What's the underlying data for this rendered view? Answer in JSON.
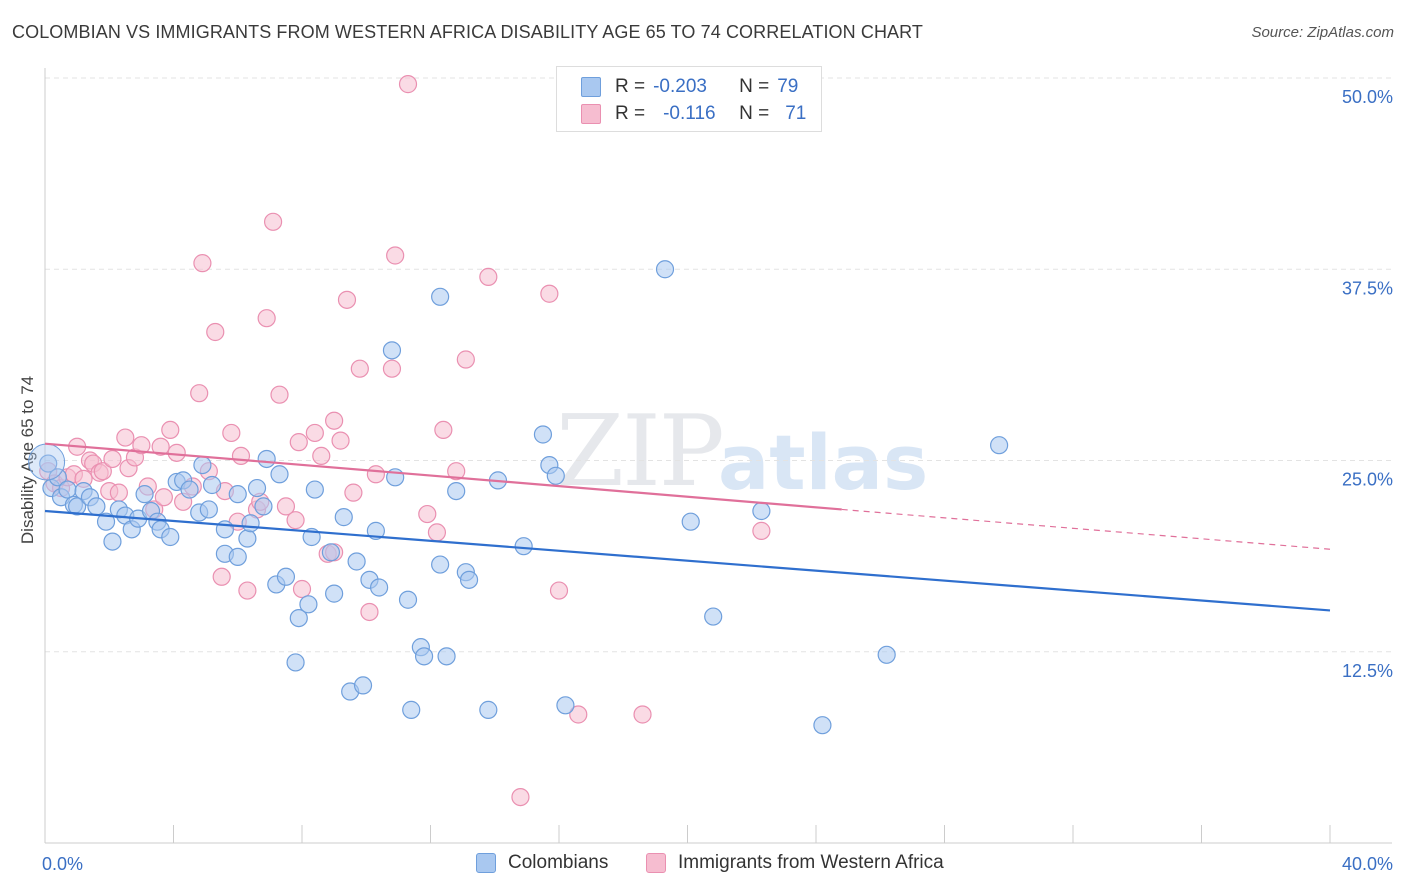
{
  "title": "COLOMBIAN VS IMMIGRANTS FROM WESTERN AFRICA DISABILITY AGE 65 TO 74 CORRELATION CHART",
  "source": "Source: ZipAtlas.com",
  "watermark": {
    "zip": "ZIP",
    "atlas": "atlas"
  },
  "legend_top": {
    "series1": {
      "r_label": "R =",
      "r_value": "-0.203",
      "n_label": "N =",
      "n_value": "79"
    },
    "series2": {
      "r_label": "R =",
      "r_value": "-0.116",
      "n_label": "N =",
      "n_value": "71"
    }
  },
  "legend_bottom": {
    "series1": "Colombians",
    "series2": "Immigrants from Western Africa"
  },
  "colors": {
    "blue_fill": "#a9c8f0",
    "blue_stroke": "#6f9fdc",
    "blue_line": "#2f6fce",
    "pink_fill": "#f6bdd0",
    "pink_stroke": "#ea90b1",
    "pink_line": "#e0709a",
    "tick_text": "#3a6fc4",
    "grid": "#e3e3e3"
  },
  "chart_data": {
    "type": "scatter",
    "title": "COLOMBIAN VS IMMIGRANTS FROM WESTERN AFRICA DISABILITY AGE 65 TO 74 CORRELATION CHART",
    "xlabel": "",
    "ylabel": "Disability Age 65 to 74",
    "xlim": [
      0,
      40
    ],
    "ylim": [
      0,
      50
    ],
    "x_tick_labels": [
      "0.0%",
      "40.0%"
    ],
    "y_ticks": [
      12.5,
      25.0,
      37.5,
      50.0
    ],
    "y_tick_labels": [
      "12.5%",
      "25.0%",
      "37.5%",
      "50.0%"
    ],
    "series": [
      {
        "name": "Colombians",
        "r": -0.203,
        "n": 79,
        "trend": {
          "x": [
            0,
            40
          ],
          "y": [
            21.7,
            15.2
          ]
        },
        "points": [
          [
            0.1,
            24.8
          ],
          [
            0.2,
            23.2
          ],
          [
            0.4,
            23.9
          ],
          [
            0.5,
            22.6
          ],
          [
            0.7,
            23.1
          ],
          [
            0.9,
            22.1
          ],
          [
            1.0,
            22.0
          ],
          [
            1.2,
            23.0
          ],
          [
            1.4,
            22.6
          ],
          [
            1.6,
            22.0
          ],
          [
            1.9,
            21.0
          ],
          [
            2.1,
            19.7
          ],
          [
            2.3,
            21.8
          ],
          [
            2.5,
            21.4
          ],
          [
            2.7,
            20.5
          ],
          [
            2.9,
            21.2
          ],
          [
            3.1,
            22.8
          ],
          [
            3.3,
            21.7
          ],
          [
            3.5,
            21.0
          ],
          [
            3.6,
            20.5
          ],
          [
            3.9,
            20.0
          ],
          [
            4.1,
            23.6
          ],
          [
            4.3,
            23.7
          ],
          [
            4.5,
            23.1
          ],
          [
            4.8,
            21.6
          ],
          [
            4.9,
            24.7
          ],
          [
            5.1,
            21.8
          ],
          [
            5.2,
            23.4
          ],
          [
            5.6,
            18.9
          ],
          [
            5.6,
            20.5
          ],
          [
            6.0,
            18.7
          ],
          [
            6.0,
            22.8
          ],
          [
            6.3,
            19.9
          ],
          [
            6.4,
            20.9
          ],
          [
            6.6,
            23.2
          ],
          [
            6.8,
            22.0
          ],
          [
            6.9,
            25.1
          ],
          [
            7.2,
            16.9
          ],
          [
            7.3,
            24.1
          ],
          [
            7.5,
            17.4
          ],
          [
            7.8,
            11.8
          ],
          [
            7.9,
            14.7
          ],
          [
            8.2,
            15.6
          ],
          [
            8.3,
            20.0
          ],
          [
            8.4,
            23.1
          ],
          [
            8.9,
            19.0
          ],
          [
            9.0,
            16.3
          ],
          [
            9.3,
            21.3
          ],
          [
            9.5,
            9.9
          ],
          [
            9.7,
            18.4
          ],
          [
            9.9,
            10.3
          ],
          [
            10.1,
            17.2
          ],
          [
            10.3,
            20.4
          ],
          [
            10.4,
            16.7
          ],
          [
            10.8,
            32.2
          ],
          [
            10.9,
            23.9
          ],
          [
            11.3,
            15.9
          ],
          [
            11.4,
            8.7
          ],
          [
            11.7,
            12.8
          ],
          [
            11.8,
            12.2
          ],
          [
            12.3,
            18.2
          ],
          [
            12.5,
            12.2
          ],
          [
            12.8,
            23.0
          ],
          [
            13.1,
            17.7
          ],
          [
            13.2,
            17.2
          ],
          [
            13.8,
            8.7
          ],
          [
            14.1,
            23.7
          ],
          [
            14.9,
            19.4
          ],
          [
            15.5,
            26.7
          ],
          [
            15.7,
            24.7
          ],
          [
            15.9,
            24.0
          ],
          [
            16.2,
            9.0
          ],
          [
            12.3,
            35.7
          ],
          [
            19.3,
            37.5
          ],
          [
            20.1,
            21.0
          ],
          [
            20.8,
            14.8
          ],
          [
            24.2,
            7.7
          ],
          [
            26.2,
            12.3
          ],
          [
            29.7,
            26.0
          ],
          [
            22.3,
            21.7
          ]
        ]
      },
      {
        "name": "Immigrants from Western Africa",
        "r": -0.116,
        "n": 71,
        "trend": {
          "x": [
            0,
            24.8
          ],
          "y": [
            26.1,
            21.8
          ]
        },
        "trend_dashed": {
          "x": [
            24.8,
            40
          ],
          "y": [
            21.8,
            19.2
          ]
        },
        "points": [
          [
            0.1,
            24.3
          ],
          [
            0.3,
            23.5
          ],
          [
            0.5,
            23.2
          ],
          [
            0.7,
            23.9
          ],
          [
            0.9,
            24.1
          ],
          [
            1.0,
            25.9
          ],
          [
            1.2,
            23.8
          ],
          [
            1.4,
            25.0
          ],
          [
            1.5,
            24.8
          ],
          [
            1.7,
            24.2
          ],
          [
            1.8,
            24.3
          ],
          [
            2.0,
            23.0
          ],
          [
            2.1,
            25.1
          ],
          [
            2.3,
            22.9
          ],
          [
            2.5,
            26.5
          ],
          [
            2.6,
            24.5
          ],
          [
            2.8,
            25.2
          ],
          [
            3.0,
            26.0
          ],
          [
            3.2,
            23.3
          ],
          [
            3.4,
            21.8
          ],
          [
            3.6,
            25.9
          ],
          [
            3.7,
            22.6
          ],
          [
            3.9,
            27.0
          ],
          [
            4.1,
            25.5
          ],
          [
            4.3,
            22.3
          ],
          [
            4.6,
            23.3
          ],
          [
            4.8,
            29.4
          ],
          [
            4.9,
            37.9
          ],
          [
            5.1,
            24.3
          ],
          [
            5.3,
            33.4
          ],
          [
            5.5,
            17.4
          ],
          [
            5.6,
            23.0
          ],
          [
            5.8,
            26.8
          ],
          [
            6.0,
            21.0
          ],
          [
            6.1,
            25.3
          ],
          [
            6.3,
            16.5
          ],
          [
            6.6,
            21.8
          ],
          [
            6.7,
            22.3
          ],
          [
            6.9,
            34.3
          ],
          [
            7.1,
            40.6
          ],
          [
            7.3,
            29.3
          ],
          [
            7.5,
            22.0
          ],
          [
            7.8,
            21.1
          ],
          [
            7.9,
            26.2
          ],
          [
            8.0,
            16.6
          ],
          [
            8.4,
            26.8
          ],
          [
            8.6,
            25.3
          ],
          [
            8.8,
            18.9
          ],
          [
            9.0,
            27.6
          ],
          [
            9.2,
            26.3
          ],
          [
            9.4,
            35.5
          ],
          [
            9.6,
            22.9
          ],
          [
            9.8,
            31.0
          ],
          [
            10.1,
            15.1
          ],
          [
            10.3,
            24.1
          ],
          [
            10.8,
            31.0
          ],
          [
            10.9,
            38.4
          ],
          [
            11.3,
            49.6
          ],
          [
            11.9,
            21.5
          ],
          [
            12.2,
            20.3
          ],
          [
            12.4,
            27.0
          ],
          [
            12.8,
            24.3
          ],
          [
            13.1,
            31.6
          ],
          [
            13.8,
            37.0
          ],
          [
            14.8,
            3.0
          ],
          [
            15.7,
            35.9
          ],
          [
            16.0,
            16.5
          ],
          [
            16.6,
            8.4
          ],
          [
            18.6,
            8.4
          ],
          [
            22.3,
            20.4
          ],
          [
            9.0,
            19.0
          ]
        ]
      }
    ]
  }
}
